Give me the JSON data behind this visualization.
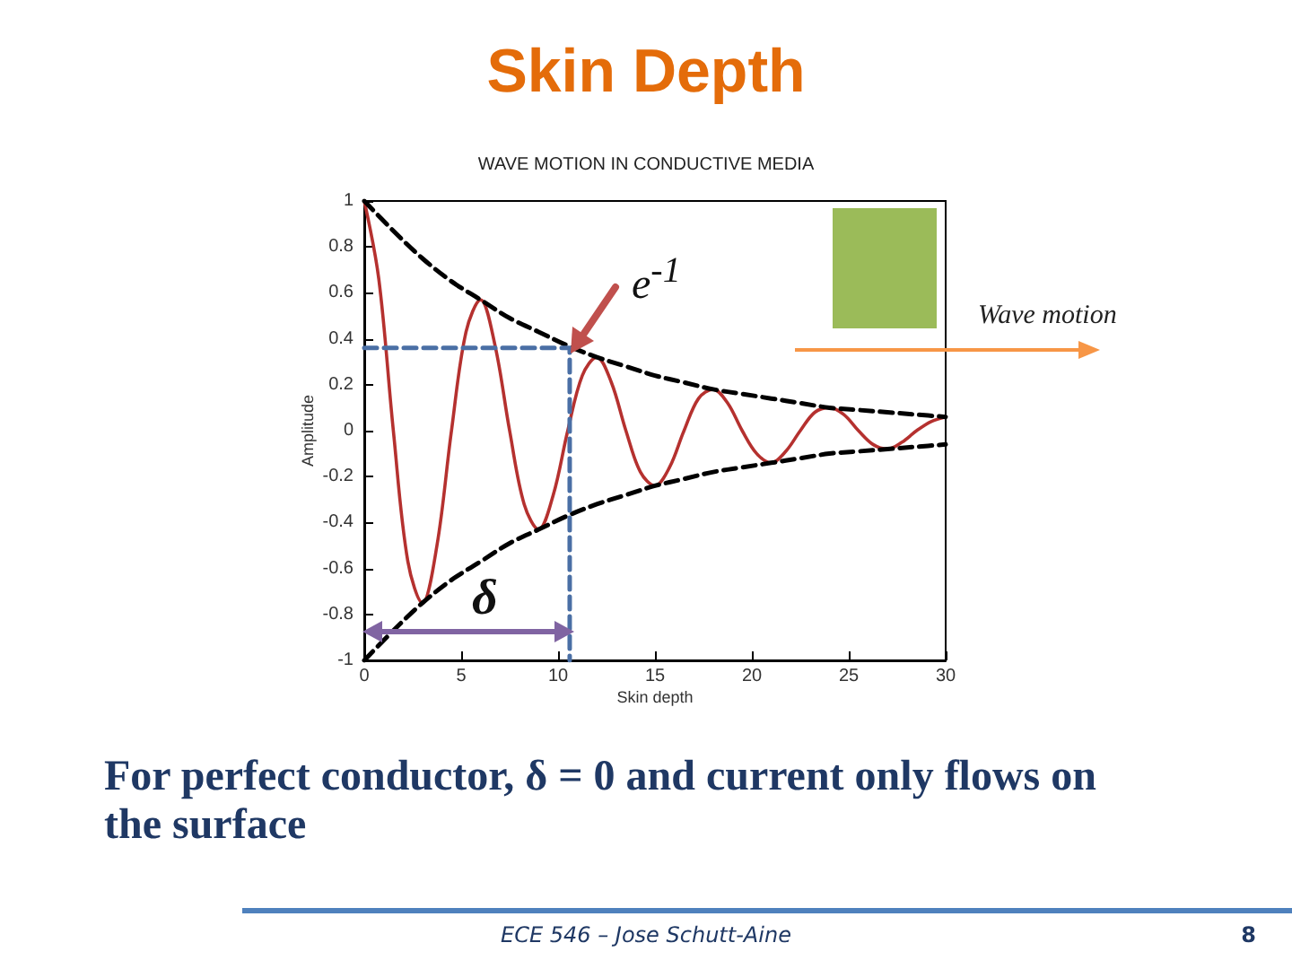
{
  "chart_data": {
    "type": "line",
    "title": "Skin Depth",
    "subtitle": "WAVE MOTION IN CONDUCTIVE MEDIA",
    "xlabel": "Skin depth",
    "ylabel": "Amplitude",
    "xlim": [
      0,
      30
    ],
    "xticks": [
      0,
      5,
      10,
      15,
      20,
      25,
      30
    ],
    "ylim": [
      -1,
      1
    ],
    "yticks": [
      -1,
      -0.8,
      -0.6,
      -0.4,
      -0.2,
      0,
      0.2,
      0.4,
      0.6,
      0.8,
      1
    ],
    "grid": false,
    "marker": "none",
    "series": [
      {
        "color": "#b5312f",
        "x": [
          0,
          0.75,
          1.5,
          2.25,
          3,
          3.75,
          4.5,
          5.25,
          6,
          6.75,
          7.5,
          8.25,
          9,
          9.75,
          10.5,
          11.25,
          12,
          12.75,
          13.5,
          14.25,
          15,
          15.75,
          16.5,
          17.25,
          18,
          18.75,
          19.5,
          20.25,
          21,
          21.75,
          22.5,
          23.25,
          24,
          24.75,
          25.5,
          26.25,
          27,
          27.75,
          28.5,
          29.25,
          30
        ],
        "values": [
          1,
          0.66,
          0,
          -0.57,
          -0.75,
          -0.5,
          0,
          0.43,
          0.57,
          0.37,
          0,
          -0.32,
          -0.43,
          -0.28,
          0,
          0.24,
          0.32,
          0.21,
          0,
          -0.18,
          -0.24,
          -0.16,
          0,
          0.14,
          0.18,
          0.12,
          0,
          -0.1,
          -0.14,
          -0.09,
          0,
          0.08,
          0.1,
          0.07,
          0,
          -0.06,
          -0.08,
          -0.05,
          0,
          0.04,
          0.06
        ]
      },
      {
        "color": "#000000",
        "line_style": "dashed",
        "x": [
          0,
          1.5,
          3,
          4.5,
          6,
          7.5,
          9,
          10.5,
          12,
          13.5,
          15,
          16.5,
          18,
          19.5,
          21,
          22.5,
          24,
          25.5,
          27,
          28.5,
          30
        ],
        "values": [
          1,
          0.87,
          0.75,
          0.65,
          0.57,
          0.49,
          0.43,
          0.37,
          0.32,
          0.28,
          0.24,
          0.21,
          0.18,
          0.16,
          0.14,
          0.12,
          0.1,
          0.09,
          0.08,
          0.07,
          0.06
        ]
      },
      {
        "color": "#000000",
        "line_style": "dashed",
        "x": [
          0,
          1.5,
          3,
          4.5,
          6,
          7.5,
          9,
          10.5,
          12,
          13.5,
          15,
          16.5,
          18,
          19.5,
          21,
          22.5,
          24,
          25.5,
          27,
          28.5,
          30
        ],
        "values": [
          -1,
          -0.87,
          -0.75,
          -0.65,
          -0.57,
          -0.49,
          -0.43,
          -0.37,
          -0.32,
          -0.28,
          -0.24,
          -0.21,
          -0.18,
          -0.16,
          -0.14,
          -0.12,
          -0.1,
          -0.09,
          -0.08,
          -0.07,
          -0.06
        ]
      },
      {
        "color": "#4a6fa5",
        "line_style": "dashed",
        "x": [
          0,
          10.6,
          10.6
        ],
        "values": [
          0.36,
          0.36,
          -1
        ]
      }
    ],
    "annotations": [
      "e$^{-1}$",
      "δ",
      "Wave motion",
      "For perfect conductor, δ = 0 and current only flows on the surface",
      "ECE 546 – Jose Schutt-Aine",
      "8"
    ]
  }
}
